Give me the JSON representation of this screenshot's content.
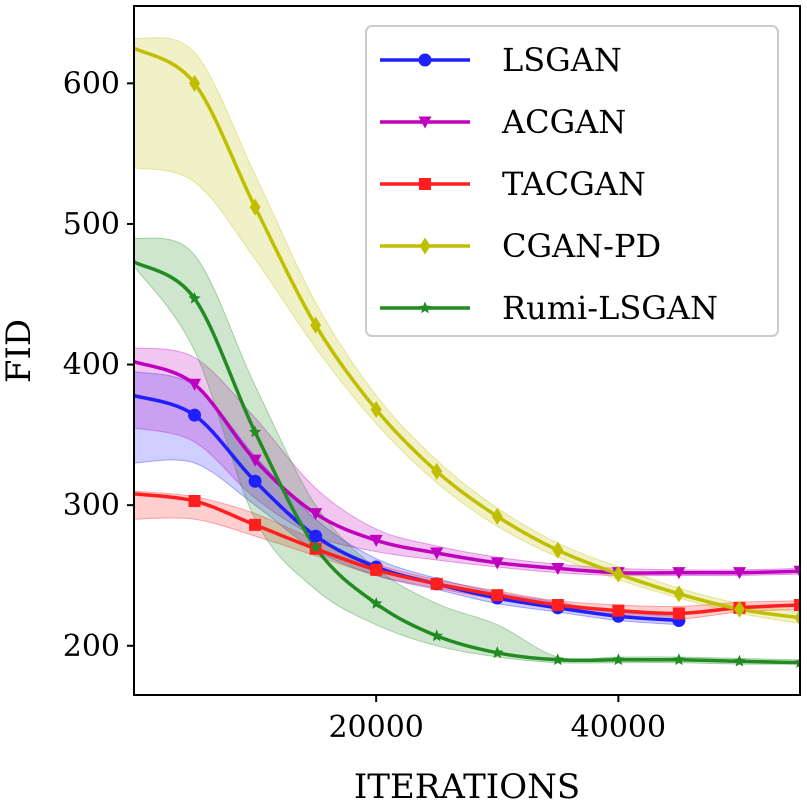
{
  "chart_data": {
    "type": "line",
    "title": "",
    "xlabel": "ITERATIONS",
    "ylabel": "FID",
    "xlim": [
      0,
      55000
    ],
    "ylim": [
      165,
      655
    ],
    "xticks": [
      20000,
      40000
    ],
    "xtick_labels": [
      "20000",
      "40000"
    ],
    "yticks": [
      200,
      300,
      400,
      500,
      600
    ],
    "ytick_labels": [
      "200",
      "300",
      "400",
      "500",
      "600"
    ],
    "legend_position": "top-right",
    "series": [
      {
        "name": "LSGAN",
        "color": "#1f1fff",
        "marker": "circle",
        "x": [
          0,
          5000,
          10000,
          15000,
          20000,
          25000,
          30000,
          35000,
          40000,
          45000
        ],
        "y": [
          378,
          364,
          317,
          278,
          256,
          244,
          234,
          227,
          221,
          218
        ],
        "lower": [
          330,
          330,
          300,
          268,
          250,
          240,
          230,
          224,
          218,
          215
        ],
        "upper": [
          395,
          385,
          335,
          290,
          262,
          248,
          238,
          231,
          224,
          221
        ]
      },
      {
        "name": "ACGAN",
        "color": "#bf00bf",
        "marker": "triangle-down",
        "x": [
          0,
          5000,
          10000,
          15000,
          20000,
          25000,
          30000,
          35000,
          40000,
          45000,
          50000,
          55000
        ],
        "y": [
          402,
          386,
          332,
          294,
          275,
          266,
          259,
          255,
          252,
          252,
          252,
          253
        ],
        "lower": [
          355,
          345,
          305,
          278,
          267,
          261,
          256,
          252,
          250,
          250,
          250,
          251
        ],
        "upper": [
          412,
          405,
          362,
          312,
          283,
          271,
          263,
          258,
          255,
          254,
          254,
          255
        ]
      },
      {
        "name": "TACGAN",
        "color": "#ff1f1f",
        "marker": "square",
        "x": [
          0,
          5000,
          10000,
          15000,
          20000,
          25000,
          30000,
          35000,
          40000,
          45000,
          50000,
          55000
        ],
        "y": [
          308,
          303,
          286,
          269,
          254,
          244,
          236,
          229,
          225,
          223,
          227,
          229
        ],
        "lower": [
          290,
          290,
          278,
          264,
          250,
          241,
          233,
          226,
          221,
          219,
          224,
          226
        ],
        "upper": [
          310,
          306,
          294,
          275,
          258,
          247,
          239,
          232,
          229,
          228,
          231,
          232
        ]
      },
      {
        "name": "CGAN-PD",
        "color": "#bfbf00",
        "marker": "diamond",
        "x": [
          0,
          5000,
          10000,
          15000,
          20000,
          25000,
          30000,
          35000,
          40000,
          45000,
          50000,
          55000
        ],
        "y": [
          625,
          600,
          512,
          428,
          368,
          324,
          292,
          268,
          251,
          237,
          226,
          220
        ],
        "lower": [
          540,
          530,
          475,
          412,
          358,
          316,
          285,
          263,
          247,
          234,
          223,
          216
        ],
        "upper": [
          632,
          622,
          535,
          444,
          378,
          332,
          298,
          273,
          256,
          241,
          230,
          224
        ]
      },
      {
        "name": "Rumi-LSGAN",
        "color": "#228b22",
        "marker": "star",
        "x": [
          0,
          5000,
          10000,
          15000,
          20000,
          25000,
          30000,
          35000,
          40000,
          45000,
          50000,
          55000
        ],
        "y": [
          473,
          447,
          352,
          270,
          230,
          207,
          195,
          190,
          190,
          190,
          189,
          188
        ],
        "lower": [
          470,
          410,
          290,
          240,
          215,
          200,
          192,
          188,
          188,
          188,
          187,
          187
        ],
        "upper": [
          490,
          478,
          385,
          300,
          255,
          230,
          215,
          192,
          192,
          192,
          191,
          190
        ]
      }
    ]
  }
}
